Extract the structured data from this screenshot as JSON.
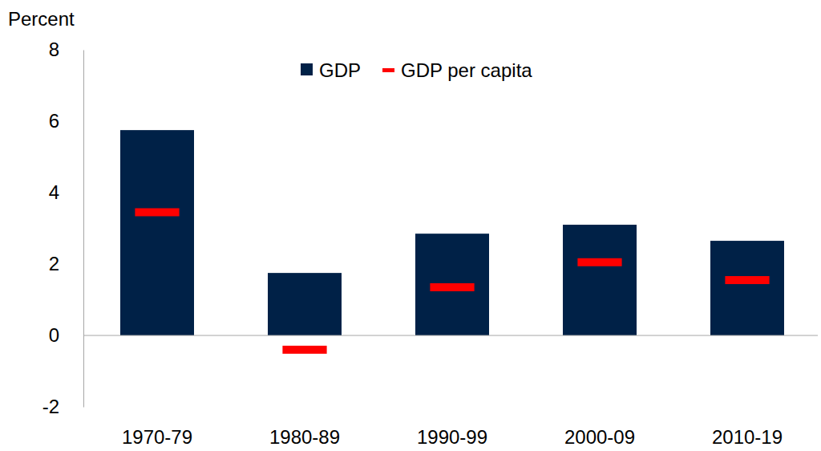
{
  "chart_data": {
    "type": "bar",
    "y_label": "Percent",
    "categories": [
      "1970-79",
      "1980-89",
      "1990-99",
      "2000-09",
      "2010-19"
    ],
    "series": [
      {
        "name": "GDP",
        "type": "bar",
        "color": "#002147",
        "values": [
          5.75,
          1.75,
          2.85,
          3.1,
          2.65
        ]
      },
      {
        "name": "GDP per capita",
        "type": "scatter",
        "marker": "dash",
        "color": "#ff0000",
        "values": [
          3.45,
          -0.4,
          1.35,
          2.05,
          1.55
        ]
      }
    ],
    "ylim": [
      -2,
      8
    ],
    "yticks": [
      -2,
      0,
      2,
      4,
      6,
      8
    ],
    "grid": false,
    "legend": "top"
  }
}
